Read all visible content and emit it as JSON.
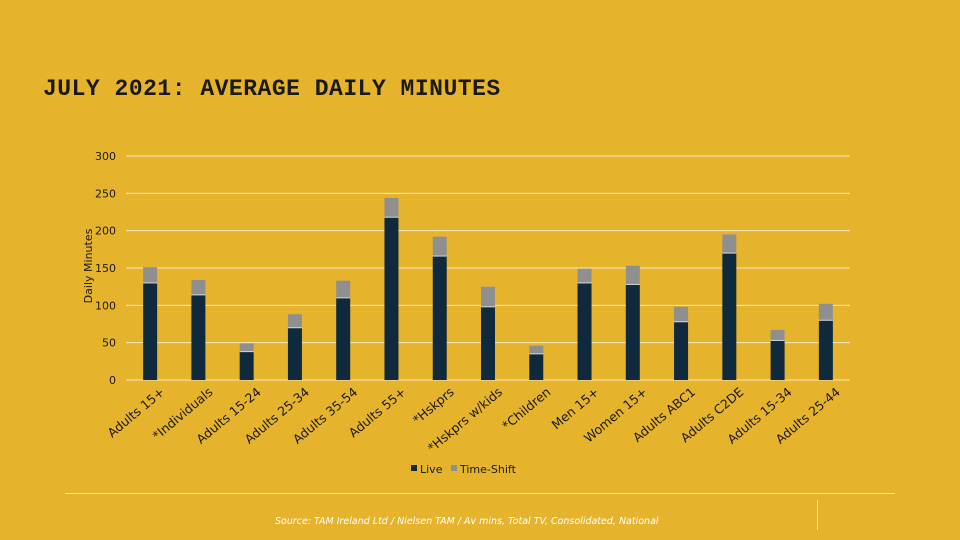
{
  "title": "JULY 2021: AVERAGE DAILY MINUTES",
  "source": "Source: TAM Ireland Ltd / Nielsen TAM / Av mins, Total TV, Consolidated, National",
  "colors": {
    "background": "#E6B32C",
    "live": "#0F2A3D",
    "time_shift": "#8F8F8F",
    "grid": "#F7E8BE"
  },
  "chart_data": {
    "type": "bar",
    "stacked": true,
    "ylabel": "Daily Minutes",
    "xlabel": "",
    "ylim": [
      0,
      300
    ],
    "yticks": [
      "0",
      "50",
      "100",
      "150",
      "200",
      "250",
      "300"
    ],
    "grid": true,
    "legend_position": "bottom",
    "categories": [
      "Adults 15+",
      "*Individuals",
      "Adults 15-24",
      "Adults 25-34",
      "Adults 35-54",
      "Adults 55+",
      "*Hskprs",
      "*Hskprs w/kids",
      "*Children",
      "Men 15+",
      "Women 15+",
      "Adults ABC1",
      "Adults C2DE",
      "Adults 15-34",
      "Adults 25-44"
    ],
    "series": [
      {
        "name": "Live",
        "values": [
          130,
          114,
          38,
          70,
          110,
          218,
          166,
          98,
          35,
          130,
          128,
          78,
          170,
          53,
          80
        ]
      },
      {
        "name": "Time-Shift",
        "values": [
          21,
          20,
          11,
          18,
          23,
          26,
          26,
          27,
          11,
          19,
          25,
          20,
          25,
          14,
          22
        ]
      }
    ]
  }
}
